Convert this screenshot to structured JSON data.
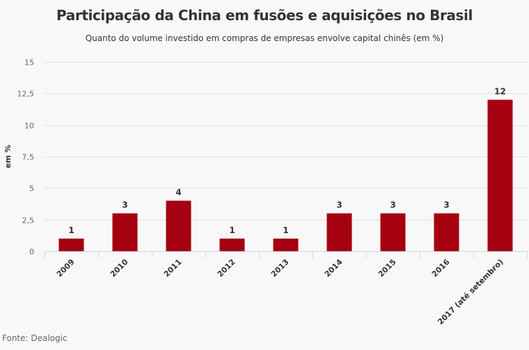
{
  "chart_data": {
    "type": "bar",
    "title": "Participação da China em fusões e aquisições no Brasil",
    "subtitle": "Quanto do volume investido em compras de empresas envolve capital chinês (em %)",
    "xlabel": "",
    "ylabel": "em %",
    "categories": [
      "2009",
      "2010",
      "2011",
      "2012",
      "2013",
      "2014",
      "2015",
      "2016",
      "2017 (até setembro)"
    ],
    "values": [
      1,
      3,
      4,
      1,
      1,
      3,
      3,
      3,
      12
    ],
    "data_labels": [
      "1",
      "3",
      "4",
      "1",
      "1",
      "3",
      "3",
      "3",
      "12"
    ],
    "ylim": [
      0,
      15
    ],
    "yticks": [
      0,
      2.5,
      5,
      7.5,
      10,
      12.5,
      15
    ],
    "ytick_labels": [
      "0",
      "2,5",
      "5",
      "7,5",
      "10",
      "12,5",
      "15"
    ],
    "grid": true,
    "legend": "none",
    "bar_color": "#a5000f",
    "source": "Fonte: Dealogic"
  }
}
